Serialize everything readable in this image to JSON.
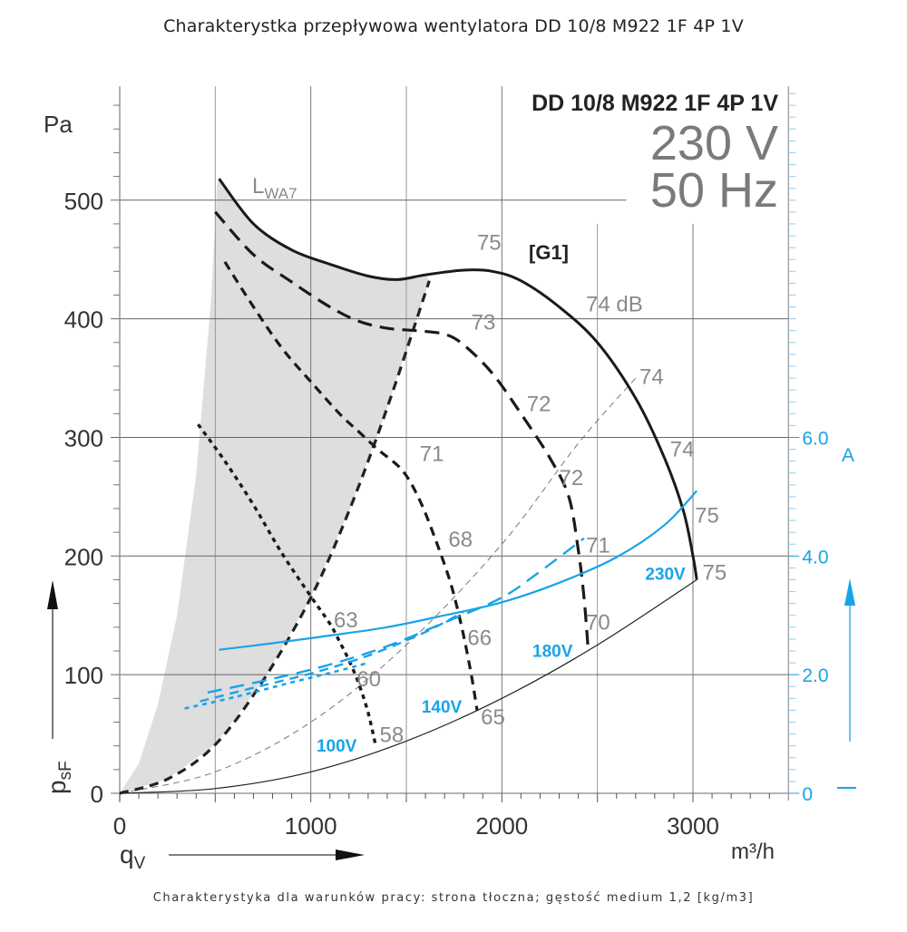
{
  "page": {
    "title": "Charakterystka przepływowa wentylatora DD 10/8 M922 1F 4P 1V",
    "footer": "Charakterystyka dla warunków pracy: strona tłoczna; gęstość medium 1,2 [kg/m3]"
  },
  "colors": {
    "pressure_curve": "#1a1a1a",
    "current_curve": "#1aa3e8",
    "grid": "#555555",
    "shaded_region": "#dedede",
    "db_label": "#8a8a8a"
  },
  "chart_data": {
    "type": "line",
    "model": "DD 10/8 M922 1F 4P 1V",
    "voltage": "230 V",
    "frequency": "50 Hz",
    "curve_tag": "[G1]",
    "sound_label": "L",
    "sound_label_sub": "WA7",
    "xlabel": "q",
    "xlabel_sub": "V",
    "xunit": "m³/h",
    "ylabel": "p",
    "ylabel_sub": "sF",
    "yunit": "Pa",
    "y2unit": "A",
    "xlim": [
      0,
      3500
    ],
    "ylim": [
      0,
      596
    ],
    "y2lim": [
      0,
      11.9
    ],
    "grid": true,
    "x_ticks": [
      {
        "value": 0,
        "label": "0"
      },
      {
        "value": 1000,
        "label": "1000"
      },
      {
        "value": 2000,
        "label": "2000"
      },
      {
        "value": 3000,
        "label": "3000"
      }
    ],
    "y_ticks": [
      {
        "value": 0,
        "label": "0"
      },
      {
        "value": 100,
        "label": "100"
      },
      {
        "value": 200,
        "label": "200"
      },
      {
        "value": 300,
        "label": "300"
      },
      {
        "value": 400,
        "label": "400"
      },
      {
        "value": 500,
        "label": "500"
      }
    ],
    "y2_ticks": [
      {
        "value": 0,
        "label": "0"
      },
      {
        "value": 2.0,
        "label": "2.0"
      },
      {
        "value": 4.0,
        "label": "4.0"
      },
      {
        "value": 6.0,
        "label": "6.0"
      }
    ],
    "pressure_series": [
      {
        "name": "230V",
        "style": "solid",
        "points": [
          [
            520,
            518
          ],
          [
            700,
            480
          ],
          [
            900,
            458
          ],
          [
            1100,
            446
          ],
          [
            1300,
            436
          ],
          [
            1450,
            433
          ],
          [
            1600,
            437
          ],
          [
            1800,
            441
          ],
          [
            1950,
            440
          ],
          [
            2100,
            432
          ],
          [
            2300,
            410
          ],
          [
            2500,
            380
          ],
          [
            2700,
            333
          ],
          [
            2850,
            283
          ],
          [
            2950,
            238
          ],
          [
            3000,
            200
          ],
          [
            3020,
            180
          ]
        ]
      },
      {
        "name": "180V",
        "style": "dash-long",
        "points": [
          [
            500,
            490
          ],
          [
            700,
            454
          ],
          [
            900,
            431
          ],
          [
            1100,
            410
          ],
          [
            1250,
            398
          ],
          [
            1400,
            392
          ],
          [
            1550,
            390
          ],
          [
            1700,
            387
          ],
          [
            1800,
            378
          ],
          [
            1950,
            354
          ],
          [
            2100,
            320
          ],
          [
            2250,
            283
          ],
          [
            2350,
            250
          ],
          [
            2400,
            205
          ],
          [
            2430,
            165
          ],
          [
            2450,
            125
          ]
        ]
      },
      {
        "name": "140V",
        "style": "dash-medium",
        "points": [
          [
            550,
            448
          ],
          [
            700,
            410
          ],
          [
            850,
            375
          ],
          [
            1000,
            347
          ],
          [
            1150,
            320
          ],
          [
            1250,
            305
          ],
          [
            1350,
            290
          ],
          [
            1480,
            272
          ],
          [
            1570,
            247
          ],
          [
            1650,
            215
          ],
          [
            1730,
            178
          ],
          [
            1790,
            140
          ],
          [
            1840,
            100
          ],
          [
            1870,
            70
          ]
        ]
      },
      {
        "name": "100V",
        "style": "dash-short",
        "points": [
          [
            410,
            311
          ],
          [
            550,
            280
          ],
          [
            700,
            243
          ],
          [
            850,
            202
          ],
          [
            1000,
            166
          ],
          [
            1100,
            143
          ],
          [
            1150,
            128
          ],
          [
            1200,
            112
          ],
          [
            1250,
            93
          ],
          [
            1300,
            68
          ],
          [
            1340,
            40
          ]
        ]
      }
    ],
    "system_curves": [
      {
        "name": "min",
        "style": "solid-thin",
        "points": [
          [
            0,
            0
          ],
          [
            500,
            4
          ],
          [
            1000,
            18
          ],
          [
            1500,
            44
          ],
          [
            2000,
            80
          ],
          [
            2500,
            125
          ],
          [
            3020,
            180
          ]
        ]
      },
      {
        "name": "mid",
        "style": "dash-thin",
        "points": [
          [
            0,
            0
          ],
          [
            500,
            18
          ],
          [
            1000,
            60
          ],
          [
            1500,
            125
          ],
          [
            2000,
            210
          ],
          [
            2400,
            295
          ],
          [
            2700,
            350
          ]
        ]
      },
      {
        "name": "lwa7-boundary",
        "style": "dash-medium",
        "points": [
          [
            0,
            0
          ],
          [
            250,
            12
          ],
          [
            500,
            41
          ],
          [
            750,
            95
          ],
          [
            1000,
            165
          ],
          [
            1200,
            238
          ],
          [
            1400,
            325
          ],
          [
            1620,
            432
          ]
        ]
      }
    ],
    "shaded_region": {
      "label": "L_WA7",
      "left_edge": [
        [
          0,
          0
        ],
        [
          100,
          25
        ],
        [
          200,
          75
        ],
        [
          300,
          150
        ],
        [
          400,
          268
        ],
        [
          480,
          420
        ],
        [
          510,
          515
        ]
      ]
    },
    "current_series": [
      {
        "name": "230V",
        "style": "solid",
        "points": [
          [
            520,
            2.42
          ],
          [
            800,
            2.53
          ],
          [
            1100,
            2.66
          ],
          [
            1400,
            2.8
          ],
          [
            1700,
            3.0
          ],
          [
            2000,
            3.22
          ],
          [
            2300,
            3.55
          ],
          [
            2600,
            3.98
          ],
          [
            2850,
            4.52
          ],
          [
            3020,
            5.1
          ]
        ]
      },
      {
        "name": "180V",
        "style": "dash-long",
        "points": [
          [
            460,
            1.7
          ],
          [
            800,
            1.93
          ],
          [
            1100,
            2.17
          ],
          [
            1400,
            2.48
          ],
          [
            1700,
            2.88
          ],
          [
            2000,
            3.3
          ],
          [
            2200,
            3.74
          ],
          [
            2430,
            4.3
          ]
        ]
      },
      {
        "name": "140V",
        "style": "dash-medium",
        "points": [
          [
            420,
            1.55
          ],
          [
            700,
            1.78
          ],
          [
            1000,
            2.02
          ],
          [
            1300,
            2.32
          ],
          [
            1600,
            2.72
          ],
          [
            1800,
            3.06
          ]
        ]
      },
      {
        "name": "100V",
        "style": "dash-short",
        "points": [
          [
            340,
            1.43
          ],
          [
            600,
            1.62
          ],
          [
            900,
            1.87
          ],
          [
            1150,
            2.07
          ],
          [
            1300,
            2.2
          ]
        ]
      }
    ],
    "annotations": [
      {
        "text": "75",
        "x": 1870,
        "y": 458,
        "kind": "db"
      },
      {
        "text": "74 dB",
        "x": 2440,
        "y": 406,
        "kind": "db"
      },
      {
        "text": "74",
        "x": 2720,
        "y": 345,
        "kind": "db"
      },
      {
        "text": "74",
        "x": 2880,
        "y": 284,
        "kind": "db"
      },
      {
        "text": "75",
        "x": 3010,
        "y": 228,
        "kind": "db"
      },
      {
        "text": "75",
        "x": 3050,
        "y": 180,
        "kind": "db"
      },
      {
        "text": "73",
        "x": 1840,
        "y": 391,
        "kind": "db"
      },
      {
        "text": "72",
        "x": 2130,
        "y": 322,
        "kind": "db"
      },
      {
        "text": "72",
        "x": 2300,
        "y": 260,
        "kind": "db"
      },
      {
        "text": "71",
        "x": 2440,
        "y": 203,
        "kind": "db"
      },
      {
        "text": "70",
        "x": 2440,
        "y": 138,
        "kind": "db"
      },
      {
        "text": "71",
        "x": 1570,
        "y": 280,
        "kind": "db"
      },
      {
        "text": "68",
        "x": 1720,
        "y": 208,
        "kind": "db"
      },
      {
        "text": "66",
        "x": 1820,
        "y": 125,
        "kind": "db"
      },
      {
        "text": "65",
        "x": 1890,
        "y": 58,
        "kind": "db"
      },
      {
        "text": "63",
        "x": 1120,
        "y": 140,
        "kind": "db"
      },
      {
        "text": "60",
        "x": 1240,
        "y": 90,
        "kind": "db"
      },
      {
        "text": "58",
        "x": 1360,
        "y": 43,
        "kind": "db"
      },
      {
        "text": "230V",
        "x": 2750,
        "y": 180,
        "kind": "volt"
      },
      {
        "text": "180V",
        "x": 2160,
        "y": 115,
        "kind": "volt"
      },
      {
        "text": "140V",
        "x": 1580,
        "y": 68,
        "kind": "volt"
      },
      {
        "text": "100V",
        "x": 1030,
        "y": 35,
        "kind": "volt"
      }
    ]
  }
}
